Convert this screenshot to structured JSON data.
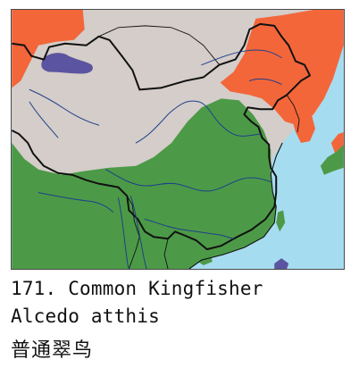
{
  "caption": {
    "number_and_name": "171. Common Kingfisher",
    "latin_name": "Alcedo atthis",
    "chinese_name": "普通翠鸟"
  },
  "map": {
    "colors": {
      "sea": "#a6dcf0",
      "land_no_data": "#d4cdc9",
      "breeding_range": "#f2663a",
      "resident_range": "#4c9a47",
      "wintering_range": "#5b54a0",
      "borders": "#111111",
      "rivers": "#1e3f8c"
    }
  }
}
